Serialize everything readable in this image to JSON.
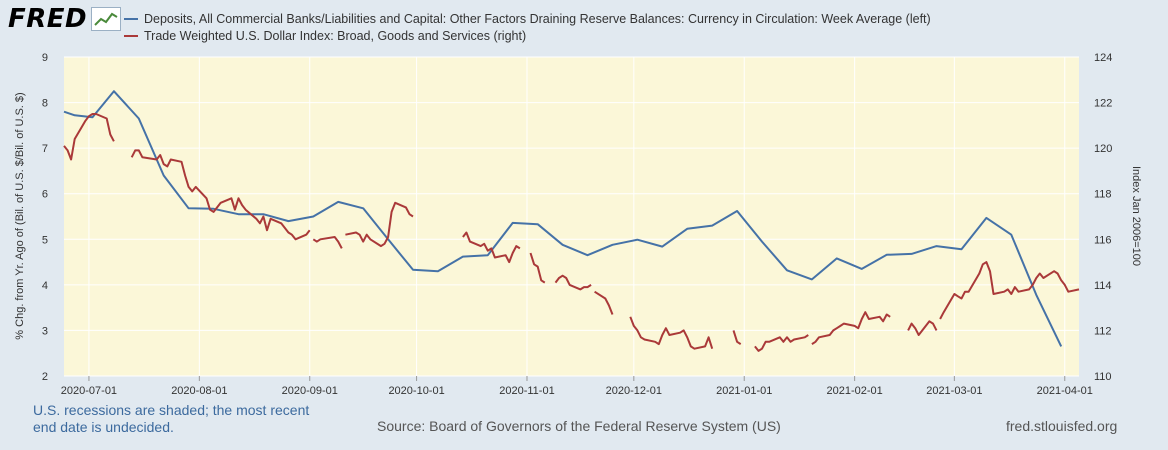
{
  "logo": {
    "text": "FRED",
    "icon": "chart-trend-icon"
  },
  "footer": {
    "note": "U.S. recessions are shaded; the most recent end date is undecided.",
    "source": "Source: Board of Governors of the Federal Reserve System (US)",
    "site": "fred.stlouisfed.org"
  },
  "chart_data": {
    "type": "line",
    "series": [
      {
        "name": "Deposits, All Commercial Banks/Liabilities and Capital: Other Factors Draining Reserve Balances: Currency in Circulation: Week Average (left)",
        "axis": "left",
        "color": "#4572a7",
        "points": [
          [
            "2020-06-24",
            7.8
          ],
          [
            "2020-06-27",
            7.72
          ],
          [
            "2020-07-02",
            7.68
          ],
          [
            "2020-07-08",
            8.25
          ],
          [
            "2020-07-15",
            7.65
          ],
          [
            "2020-07-22",
            6.4
          ],
          [
            "2020-07-29",
            5.68
          ],
          [
            "2020-08-05",
            5.67
          ],
          [
            "2020-08-12",
            5.55
          ],
          [
            "2020-08-19",
            5.55
          ],
          [
            "2020-08-26",
            5.4
          ],
          [
            "2020-09-02",
            5.5
          ],
          [
            "2020-09-09",
            5.82
          ],
          [
            "2020-09-16",
            5.68
          ],
          [
            "2020-09-23",
            5.0
          ],
          [
            "2020-09-30",
            4.33
          ],
          [
            "2020-10-07",
            4.3
          ],
          [
            "2020-10-14",
            4.62
          ],
          [
            "2020-10-21",
            4.65
          ],
          [
            "2020-10-28",
            5.36
          ],
          [
            "2020-11-04",
            5.33
          ],
          [
            "2020-11-11",
            4.88
          ],
          [
            "2020-11-18",
            4.65
          ],
          [
            "2020-11-25",
            4.88
          ],
          [
            "2020-12-02",
            4.99
          ],
          [
            "2020-12-09",
            4.84
          ],
          [
            "2020-12-16",
            5.23
          ],
          [
            "2020-12-23",
            5.3
          ],
          [
            "2020-12-30",
            5.62
          ],
          [
            "2021-01-06",
            4.95
          ],
          [
            "2021-01-13",
            4.32
          ],
          [
            "2021-01-20",
            4.12
          ],
          [
            "2021-01-27",
            4.58
          ],
          [
            "2021-02-03",
            4.35
          ],
          [
            "2021-02-10",
            4.66
          ],
          [
            "2021-02-17",
            4.68
          ],
          [
            "2021-02-24",
            4.85
          ],
          [
            "2021-03-03",
            4.78
          ],
          [
            "2021-03-10",
            5.47
          ],
          [
            "2021-03-17",
            5.1
          ],
          [
            "2021-03-24",
            3.78
          ],
          [
            "2021-03-31",
            2.65
          ]
        ]
      },
      {
        "name": "Trade Weighted U.S. Dollar Index: Broad, Goods and Services (right)",
        "axis": "right",
        "color": "#aa3939",
        "segments": [
          [
            [
              "2020-06-24",
              120.1
            ],
            [
              "2020-06-25",
              119.9
            ],
            [
              "2020-06-26",
              119.5
            ],
            [
              "2020-06-27",
              120.4
            ],
            [
              "2020-06-30",
              121.2
            ],
            [
              "2020-07-01",
              121.4
            ],
            [
              "2020-07-02",
              121.5
            ],
            [
              "2020-07-03",
              121.5
            ],
            [
              "2020-07-06",
              121.3
            ],
            [
              "2020-07-07",
              120.6
            ],
            [
              "2020-07-08",
              120.3
            ]
          ],
          [
            [
              "2020-07-13",
              119.6
            ],
            [
              "2020-07-14",
              119.9
            ],
            [
              "2020-07-15",
              119.9
            ],
            [
              "2020-07-16",
              119.6
            ],
            [
              "2020-07-20",
              119.5
            ],
            [
              "2020-07-21",
              119.7
            ],
            [
              "2020-07-22",
              119.3
            ],
            [
              "2020-07-23",
              119.2
            ],
            [
              "2020-07-24",
              119.5
            ],
            [
              "2020-07-27",
              119.4
            ],
            [
              "2020-07-28",
              118.8
            ],
            [
              "2020-07-29",
              118.3
            ],
            [
              "2020-07-30",
              118.1
            ],
            [
              "2020-07-31",
              118.3
            ],
            [
              "2020-08-03",
              117.8
            ],
            [
              "2020-08-04",
              117.3
            ],
            [
              "2020-08-05",
              117.2
            ],
            [
              "2020-08-06",
              117.4
            ],
            [
              "2020-08-07",
              117.6
            ],
            [
              "2020-08-10",
              117.8
            ],
            [
              "2020-08-11",
              117.3
            ],
            [
              "2020-08-12",
              117.8
            ],
            [
              "2020-08-13",
              117.5
            ],
            [
              "2020-08-14",
              117.3
            ],
            [
              "2020-08-17",
              116.9
            ],
            [
              "2020-08-18",
              116.7
            ],
            [
              "2020-08-19",
              117.0
            ],
            [
              "2020-08-20",
              116.4
            ],
            [
              "2020-08-21",
              116.9
            ],
            [
              "2020-08-24",
              116.7
            ],
            [
              "2020-08-25",
              116.5
            ],
            [
              "2020-08-26",
              116.3
            ],
            [
              "2020-08-27",
              116.2
            ],
            [
              "2020-08-28",
              116.0
            ],
            [
              "2020-08-31",
              116.2
            ],
            [
              "2020-09-01",
              116.4
            ]
          ],
          [
            [
              "2020-09-02",
              116.0
            ],
            [
              "2020-09-03",
              115.9
            ],
            [
              "2020-09-04",
              116.0
            ],
            [
              "2020-09-08",
              116.1
            ],
            [
              "2020-09-09",
              115.9
            ],
            [
              "2020-09-10",
              115.6
            ]
          ],
          [
            [
              "2020-09-11",
              116.2
            ],
            [
              "2020-09-14",
              116.3
            ],
            [
              "2020-09-15",
              116.2
            ],
            [
              "2020-09-16",
              115.9
            ],
            [
              "2020-09-17",
              116.2
            ],
            [
              "2020-09-18",
              116.0
            ],
            [
              "2020-09-21",
              115.7
            ],
            [
              "2020-09-22",
              115.8
            ],
            [
              "2020-09-23",
              116.1
            ],
            [
              "2020-09-24",
              117.2
            ],
            [
              "2020-09-25",
              117.6
            ],
            [
              "2020-09-28",
              117.4
            ],
            [
              "2020-09-29",
              117.1
            ],
            [
              "2020-09-30",
              117.0
            ]
          ],
          [
            [
              "2020-10-14",
              116.1
            ],
            [
              "2020-10-15",
              116.3
            ],
            [
              "2020-10-16",
              115.9
            ],
            [
              "2020-10-19",
              115.7
            ],
            [
              "2020-10-20",
              115.8
            ],
            [
              "2020-10-21",
              115.5
            ],
            [
              "2020-10-22",
              115.6
            ],
            [
              "2020-10-23",
              115.2
            ],
            [
              "2020-10-26",
              115.3
            ],
            [
              "2020-10-27",
              115.0
            ],
            [
              "2020-10-28",
              115.4
            ],
            [
              "2020-10-29",
              115.7
            ],
            [
              "2020-10-30",
              115.6
            ]
          ],
          [
            [
              "2020-11-02",
              115.4
            ],
            [
              "2020-11-03",
              114.9
            ],
            [
              "2020-11-04",
              114.8
            ],
            [
              "2020-11-05",
              114.2
            ],
            [
              "2020-11-06",
              114.1
            ]
          ],
          [
            [
              "2020-11-09",
              114.1
            ],
            [
              "2020-11-10",
              114.3
            ],
            [
              "2020-11-11",
              114.4
            ],
            [
              "2020-11-12",
              114.3
            ],
            [
              "2020-11-13",
              114.0
            ],
            [
              "2020-11-16",
              113.8
            ],
            [
              "2020-11-17",
              113.9
            ],
            [
              "2020-11-18",
              113.9
            ],
            [
              "2020-11-19",
              114.0
            ]
          ],
          [
            [
              "2020-11-20",
              113.7
            ],
            [
              "2020-11-23",
              113.4
            ],
            [
              "2020-11-24",
              113.1
            ],
            [
              "2020-11-25",
              112.7
            ]
          ],
          [
            [
              "2020-11-30",
              112.6
            ],
            [
              "2020-12-01",
              112.2
            ],
            [
              "2020-12-02",
              112.0
            ],
            [
              "2020-12-03",
              111.7
            ],
            [
              "2020-12-04",
              111.6
            ],
            [
              "2020-12-07",
              111.5
            ],
            [
              "2020-12-08",
              111.4
            ],
            [
              "2020-12-09",
              111.8
            ],
            [
              "2020-12-10",
              112.1
            ],
            [
              "2020-12-11",
              111.8
            ],
            [
              "2020-12-14",
              111.9
            ],
            [
              "2020-12-15",
              112.0
            ],
            [
              "2020-12-16",
              111.7
            ],
            [
              "2020-12-17",
              111.3
            ],
            [
              "2020-12-18",
              111.2
            ],
            [
              "2020-12-21",
              111.3
            ],
            [
              "2020-12-22",
              111.7
            ],
            [
              "2020-12-23",
              111.2
            ]
          ],
          [
            [
              "2020-12-29",
              112.0
            ],
            [
              "2020-12-30",
              111.5
            ],
            [
              "2020-12-31",
              111.4
            ]
          ],
          [
            [
              "2021-01-04",
              111.3
            ],
            [
              "2021-01-05",
              111.1
            ],
            [
              "2021-01-06",
              111.2
            ],
            [
              "2021-01-07",
              111.5
            ],
            [
              "2021-01-08",
              111.5
            ],
            [
              "2021-01-11",
              111.7
            ],
            [
              "2021-01-12",
              111.5
            ],
            [
              "2021-01-13",
              111.7
            ],
            [
              "2021-01-14",
              111.5
            ],
            [
              "2021-01-15",
              111.6
            ],
            [
              "2021-01-18",
              111.7
            ],
            [
              "2021-01-19",
              111.8
            ]
          ],
          [
            [
              "2021-01-20",
              111.4
            ],
            [
              "2021-01-21",
              111.5
            ],
            [
              "2021-01-22",
              111.7
            ],
            [
              "2021-01-25",
              111.8
            ],
            [
              "2021-01-26",
              112.0
            ],
            [
              "2021-01-27",
              112.1
            ],
            [
              "2021-01-28",
              112.2
            ],
            [
              "2021-01-29",
              112.3
            ],
            [
              "2021-02-01",
              112.2
            ],
            [
              "2021-02-02",
              112.1
            ],
            [
              "2021-02-03",
              112.5
            ],
            [
              "2021-02-04",
              112.8
            ],
            [
              "2021-02-05",
              112.5
            ],
            [
              "2021-02-08",
              112.6
            ],
            [
              "2021-02-09",
              112.4
            ],
            [
              "2021-02-10",
              112.7
            ],
            [
              "2021-02-11",
              112.6
            ]
          ],
          [
            [
              "2021-02-16",
              112.0
            ],
            [
              "2021-02-17",
              112.3
            ],
            [
              "2021-02-18",
              112.1
            ],
            [
              "2021-02-19",
              111.8
            ],
            [
              "2021-02-22",
              112.4
            ],
            [
              "2021-02-23",
              112.3
            ],
            [
              "2021-02-24",
              112.0
            ]
          ],
          [
            [
              "2021-02-25",
              112.5
            ],
            [
              "2021-02-26",
              112.8
            ],
            [
              "2021-03-01",
              113.6
            ],
            [
              "2021-03-02",
              113.5
            ],
            [
              "2021-03-03",
              113.4
            ],
            [
              "2021-03-04",
              113.7
            ],
            [
              "2021-03-05",
              113.7
            ],
            [
              "2021-03-08",
              114.5
            ],
            [
              "2021-03-09",
              114.9
            ],
            [
              "2021-03-10",
              115.0
            ],
            [
              "2021-03-11",
              114.6
            ],
            [
              "2021-03-12",
              113.6
            ],
            [
              "2021-03-15",
              113.7
            ],
            [
              "2021-03-16",
              113.8
            ],
            [
              "2021-03-17",
              113.6
            ],
            [
              "2021-03-18",
              113.9
            ],
            [
              "2021-03-19",
              113.7
            ],
            [
              "2021-03-22",
              113.8
            ],
            [
              "2021-03-23",
              114.0
            ],
            [
              "2021-03-24",
              114.3
            ],
            [
              "2021-03-25",
              114.5
            ],
            [
              "2021-03-26",
              114.3
            ],
            [
              "2021-03-29",
              114.6
            ],
            [
              "2021-03-30",
              114.5
            ],
            [
              "2021-03-31",
              114.2
            ],
            [
              "2021-04-01",
              114.0
            ],
            [
              "2021-04-02",
              113.7
            ],
            [
              "2021-04-05",
              113.8
            ]
          ]
        ]
      }
    ],
    "x_ticks": [
      "2020-07-01",
      "2020-08-01",
      "2020-09-01",
      "2020-10-01",
      "2020-11-01",
      "2020-12-01",
      "2021-01-01",
      "2021-02-01",
      "2021-03-01",
      "2021-04-01"
    ],
    "xlim": [
      "2020-06-24",
      "2021-04-05"
    ],
    "y_left": {
      "label": "% Chg. from Yr. Ago of (Bil. of U.S. $/Bil. of U.S. $)",
      "lim": [
        2,
        9
      ],
      "ticks": [
        2,
        3,
        4,
        5,
        6,
        7,
        8,
        9
      ]
    },
    "y_right": {
      "label": "Index Jan 2006=100",
      "lim": [
        110,
        124
      ],
      "ticks": [
        110,
        112,
        114,
        116,
        118,
        120,
        122,
        124
      ]
    },
    "grid": true,
    "plot_background": "#fbf7d8",
    "legend_position": "top-left"
  }
}
